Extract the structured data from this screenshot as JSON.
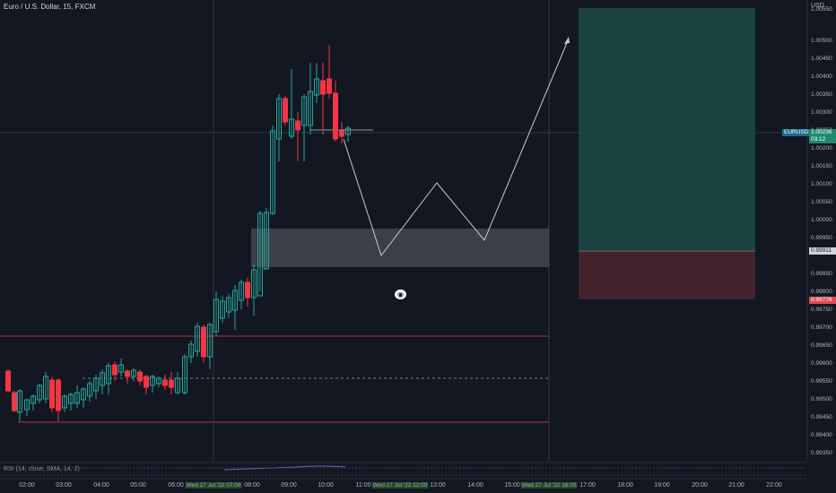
{
  "header": {
    "title": "Euro / U.S. Dollar, 15, FXCM",
    "currency": "USD"
  },
  "price_axis": {
    "labels": [
      "1.00550",
      "1.00500",
      "1.00450",
      "1.00400",
      "1.00350",
      "1.00300",
      "1.00250",
      "1.00200",
      "1.00150",
      "1.00100",
      "1.00050",
      "1.00000",
      "0.99950",
      "0.99850",
      "0.99800",
      "0.99750",
      "0.99700",
      "0.99650",
      "0.99600",
      "0.99550",
      "0.99500",
      "0.99450",
      "0.99400",
      "0.99350"
    ],
    "symbol_tag": "EURUSD",
    "last_price": "1.00236",
    "countdown": "03:12",
    "target_price": "0.99911",
    "stop_price": "0.99776"
  },
  "time_axis": {
    "labels": [
      "02:00",
      "03:00",
      "04:00",
      "05:00",
      "06:00",
      "08:00",
      "09:00",
      "10:00",
      "11:00",
      "13:00",
      "14:00",
      "15:00",
      "17:00",
      "18:00",
      "19:00",
      "20:00",
      "21:00",
      "22:00"
    ],
    "highlighted": [
      "Wed 27 Jul '22 07:00",
      "Wed 27 Jul '22 12:00",
      "Wed 27 Jul '22 16:00"
    ]
  },
  "indicator": {
    "label": "RSI (14, close, SMA, 14, 2)"
  },
  "icons": {
    "visibility": "eye-icon"
  },
  "colors": {
    "background": "#131722",
    "up": "#26a69a",
    "down": "#f23645",
    "profit_zone": "#1e4d46",
    "loss_zone": "#4a2430",
    "demand_zone": "#5d6068"
  }
}
